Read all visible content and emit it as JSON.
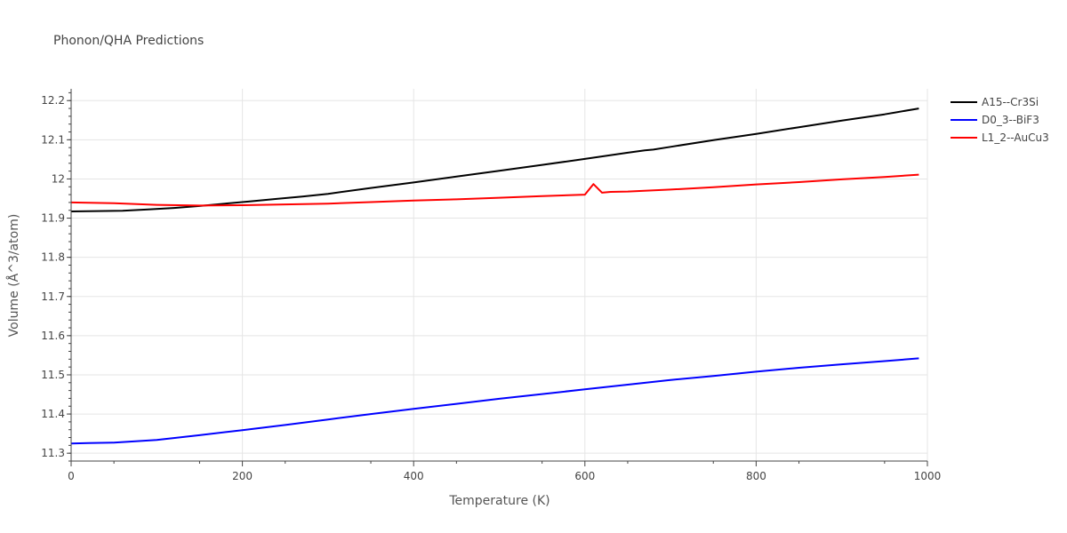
{
  "chart_data": {
    "type": "line",
    "title": "Phonon/QHA Predictions",
    "xlabel": "Temperature (K)",
    "ylabel": "Volume (Å^3/atom)",
    "xlim": [
      0,
      1000
    ],
    "ylim": [
      11.28,
      12.23
    ],
    "xticks": [
      0,
      200,
      400,
      600,
      800,
      1000
    ],
    "xtick_labels": [
      "0",
      "200",
      "400",
      "600",
      "800",
      "1000"
    ],
    "yticks": [
      11.3,
      11.4,
      11.5,
      11.6,
      11.7,
      11.8,
      11.9,
      12.0,
      12.1,
      12.2
    ],
    "ytick_labels": [
      "11.3",
      "11.4",
      "11.5",
      "11.6",
      "11.7",
      "11.8",
      "11.9",
      "12",
      "12.1",
      "12.2"
    ],
    "grid": true,
    "legend_position": "top-right",
    "series": [
      {
        "name": "A15--Cr3Si",
        "color": "#000000",
        "x": [
          0,
          30,
          60,
          90,
          120,
          150,
          180,
          210,
          240,
          270,
          300,
          350,
          400,
          450,
          500,
          550,
          600,
          650,
          670,
          680,
          700,
          750,
          800,
          850,
          900,
          950,
          990
        ],
        "y": [
          11.917,
          11.918,
          11.919,
          11.922,
          11.926,
          11.931,
          11.937,
          11.943,
          11.949,
          11.955,
          11.962,
          11.977,
          11.991,
          12.006,
          12.021,
          12.036,
          12.051,
          12.067,
          12.073,
          12.075,
          12.082,
          12.099,
          12.115,
          12.132,
          12.149,
          12.165,
          12.18
        ]
      },
      {
        "name": "D0_3--BiF3",
        "color": "#0000ff",
        "x": [
          0,
          20,
          50,
          100,
          150,
          200,
          250,
          300,
          350,
          400,
          450,
          500,
          550,
          600,
          650,
          700,
          750,
          800,
          850,
          900,
          950,
          990
        ],
        "y": [
          11.325,
          11.326,
          11.327,
          11.334,
          11.346,
          11.359,
          11.372,
          11.386,
          11.4,
          11.413,
          11.426,
          11.439,
          11.451,
          11.463,
          11.475,
          11.487,
          11.497,
          11.508,
          11.518,
          11.527,
          11.535,
          11.542
        ]
      },
      {
        "name": "L1_2--AuCu3",
        "color": "#ff0000",
        "x": [
          0,
          50,
          100,
          150,
          200,
          250,
          300,
          350,
          400,
          450,
          500,
          550,
          600,
          610,
          620,
          630,
          650,
          700,
          750,
          800,
          850,
          900,
          950,
          990
        ],
        "y": [
          11.94,
          11.938,
          11.934,
          11.932,
          11.933,
          11.935,
          11.937,
          11.941,
          11.945,
          11.948,
          11.952,
          11.956,
          11.96,
          11.987,
          11.965,
          11.967,
          11.968,
          11.973,
          11.979,
          11.986,
          11.992,
          11.999,
          12.005,
          12.011
        ]
      }
    ]
  }
}
